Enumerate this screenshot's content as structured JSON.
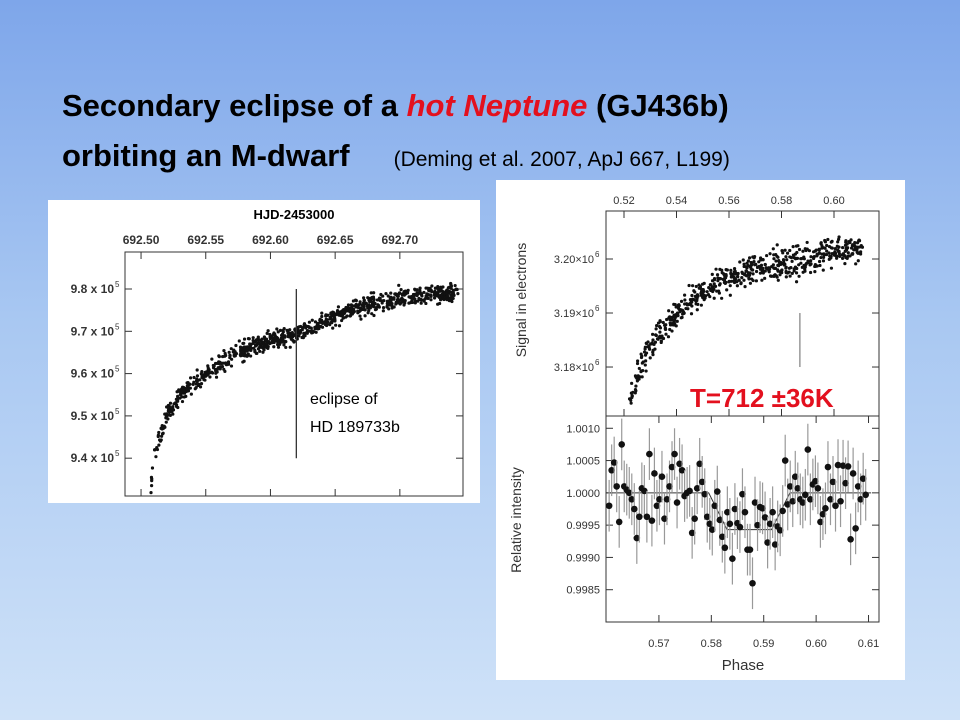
{
  "title": {
    "line1_pre": "Secondary eclipse of a ",
    "line1_highlight": "hot Neptune",
    "line1_post": " (GJ436b)",
    "line2": "orbiting an M-dwarf",
    "citation": "(Deming et al. 2007, ApJ 667, L199)"
  },
  "colors": {
    "highlight": "#e3101e",
    "background_top": "#7ea6ea",
    "background_bottom": "#cfe2f8"
  },
  "chart_data": [
    {
      "id": "hd189733b",
      "type": "scatter",
      "title": "HJD-2453000",
      "xlabel": "HJD-2453000",
      "ylabel": "",
      "xlim": [
        692.4876,
        692.7488
      ],
      "ylim": [
        9.3106,
        9.8875
      ],
      "y_unit_exponent": "5",
      "x_ticks": [
        {
          "value": 692.5,
          "label": "692.50"
        },
        {
          "value": 692.55,
          "label": "692.55"
        },
        {
          "value": 692.6,
          "label": "692.60"
        },
        {
          "value": 692.65,
          "label": "692.65"
        },
        {
          "value": 692.7,
          "label": "692.70"
        }
      ],
      "y_ticks": [
        {
          "value": 9.8,
          "label": "9.8 x 10",
          "exp": "5"
        },
        {
          "value": 9.7,
          "label": "9.7 x 10",
          "exp": "5"
        },
        {
          "value": 9.6,
          "label": "9.6 x 10",
          "exp": "5"
        },
        {
          "value": 9.5,
          "label": "9.5 x 10",
          "exp": "5"
        },
        {
          "value": 9.4,
          "label": "9.4 x 10",
          "exp": "5"
        }
      ],
      "trend": [
        [
          692.507,
          9.31
        ],
        [
          692.51,
          9.4
        ],
        [
          692.52,
          9.5
        ],
        [
          692.53,
          9.55
        ],
        [
          692.55,
          9.6
        ],
        [
          692.575,
          9.65
        ],
        [
          692.6,
          9.68
        ],
        [
          692.62,
          9.69
        ],
        [
          692.64,
          9.72
        ],
        [
          692.66,
          9.75
        ],
        [
          692.7,
          9.78
        ],
        [
          692.745,
          9.79
        ]
      ],
      "noise_sigma": 0.015,
      "n_points": 900,
      "eclipse_marker": {
        "x": 692.62,
        "y_range": [
          9.4,
          9.8
        ]
      },
      "annotation": [
        "eclipse of",
        "HD 189733b"
      ]
    },
    {
      "id": "gj436b-raw",
      "type": "scatter",
      "xlabel": "",
      "ylabel": "Signal in electrons",
      "xlim": [
        0.51314,
        0.61714
      ],
      "ylim": [
        3.17093,
        3.20889
      ],
      "y_unit_exponent": "6",
      "x_ticks": [
        {
          "value": 0.52,
          "label": "0.52"
        },
        {
          "value": 0.54,
          "label": "0.54"
        },
        {
          "value": 0.56,
          "label": "0.56"
        },
        {
          "value": 0.58,
          "label": "0.58"
        },
        {
          "value": 0.6,
          "label": "0.60"
        }
      ],
      "y_ticks": [
        {
          "value": 3.2,
          "label": "3.20×10",
          "exp": "6"
        },
        {
          "value": 3.19,
          "label": "3.19×10",
          "exp": "6"
        },
        {
          "value": 3.18,
          "label": "3.18×10",
          "exp": "6"
        }
      ],
      "trend": [
        [
          0.522,
          3.1738
        ],
        [
          0.525,
          3.178
        ],
        [
          0.53,
          3.184
        ],
        [
          0.54,
          3.19
        ],
        [
          0.55,
          3.194
        ],
        [
          0.56,
          3.1965
        ],
        [
          0.57,
          3.198
        ],
        [
          0.58,
          3.199
        ],
        [
          0.59,
          3.2
        ],
        [
          0.6,
          3.2015
        ],
        [
          0.611,
          3.202
        ]
      ],
      "noise_sigma": 0.0018,
      "n_points": 600,
      "eclipse_marker": {
        "x": 0.587,
        "y_range": [
          3.18,
          3.19
        ]
      },
      "annotation": "T=712 ±36K"
    },
    {
      "id": "gj436b-binned",
      "type": "scatter",
      "xlabel": "Phase",
      "ylabel": "Relative intensity",
      "xlim": [
        0.5599,
        0.612
      ],
      "ylim": [
        0.998,
        1.00119
      ],
      "x_ticks": [
        {
          "value": 0.57,
          "label": "0.57"
        },
        {
          "value": 0.58,
          "label": "0.58"
        },
        {
          "value": 0.59,
          "label": "0.59"
        },
        {
          "value": 0.6,
          "label": "0.60"
        },
        {
          "value": 0.61,
          "label": "0.61"
        }
      ],
      "y_ticks": [
        {
          "value": 1.001,
          "label": "1.0010"
        },
        {
          "value": 1.0005,
          "label": "1.0005"
        },
        {
          "value": 1.0,
          "label": "1.0000"
        },
        {
          "value": 0.9995,
          "label": "0.9995"
        },
        {
          "value": 0.999,
          "label": "0.9990"
        },
        {
          "value": 0.9985,
          "label": "0.9985"
        }
      ],
      "x_start": 0.5605,
      "x_step": 0.00048,
      "y_values": [
        0.9998,
        1.00035,
        1.00047,
        1.0001,
        0.99955,
        1.00075,
        1.0001,
        1.00005,
        1.0,
        0.9999,
        0.99975,
        0.9993,
        0.99963,
        1.00007,
        1.00003,
        0.99963,
        1.0006,
        0.99957,
        1.0003,
        0.9998,
        0.9999,
        1.00025,
        0.9996,
        0.9999,
        1.0001,
        1.0004,
        1.0006,
        0.99985,
        1.00045,
        1.00035,
        0.99995,
        1.0,
        1.00003,
        0.99938,
        0.9996,
        1.00007,
        1.00045,
        1.00017,
        0.99998,
        0.99963,
        0.99952,
        0.99943,
        0.9998,
        1.00002,
        0.99958,
        0.99932,
        0.99915,
        0.9997,
        0.99952,
        0.99898,
        0.99975,
        0.99953,
        0.99947,
        0.99998,
        0.9997,
        0.99912,
        0.99912,
        0.9986,
        0.99985,
        0.9995,
        0.99978,
        0.99976,
        0.99962,
        0.99923,
        0.99952,
        0.9997,
        0.9992,
        0.99948,
        0.99942,
        0.99972,
        1.0005,
        0.99982,
        1.0001,
        0.99987,
        1.00025,
        1.00007,
        0.9999,
        0.99985,
        0.99997,
        1.00067,
        0.9999,
        1.00013,
        1.00018,
        1.00007,
        0.99955,
        0.99967,
        0.99976,
        1.0004,
        0.9999,
        1.00017,
        0.9998,
        1.00043,
        0.99987,
        1.00042,
        1.00015,
        1.00041,
        0.99928,
        1.0003,
        0.99945,
        1.0001,
        0.9999,
        1.00022,
        0.99997
      ],
      "error": 0.0004,
      "model": [
        [
          0.5599,
          1.0
        ],
        [
          0.5795,
          1.0
        ],
        [
          0.583,
          0.99943
        ],
        [
          0.5915,
          0.99943
        ],
        [
          0.595,
          1.0
        ],
        [
          0.6105,
          1.0
        ]
      ]
    }
  ]
}
